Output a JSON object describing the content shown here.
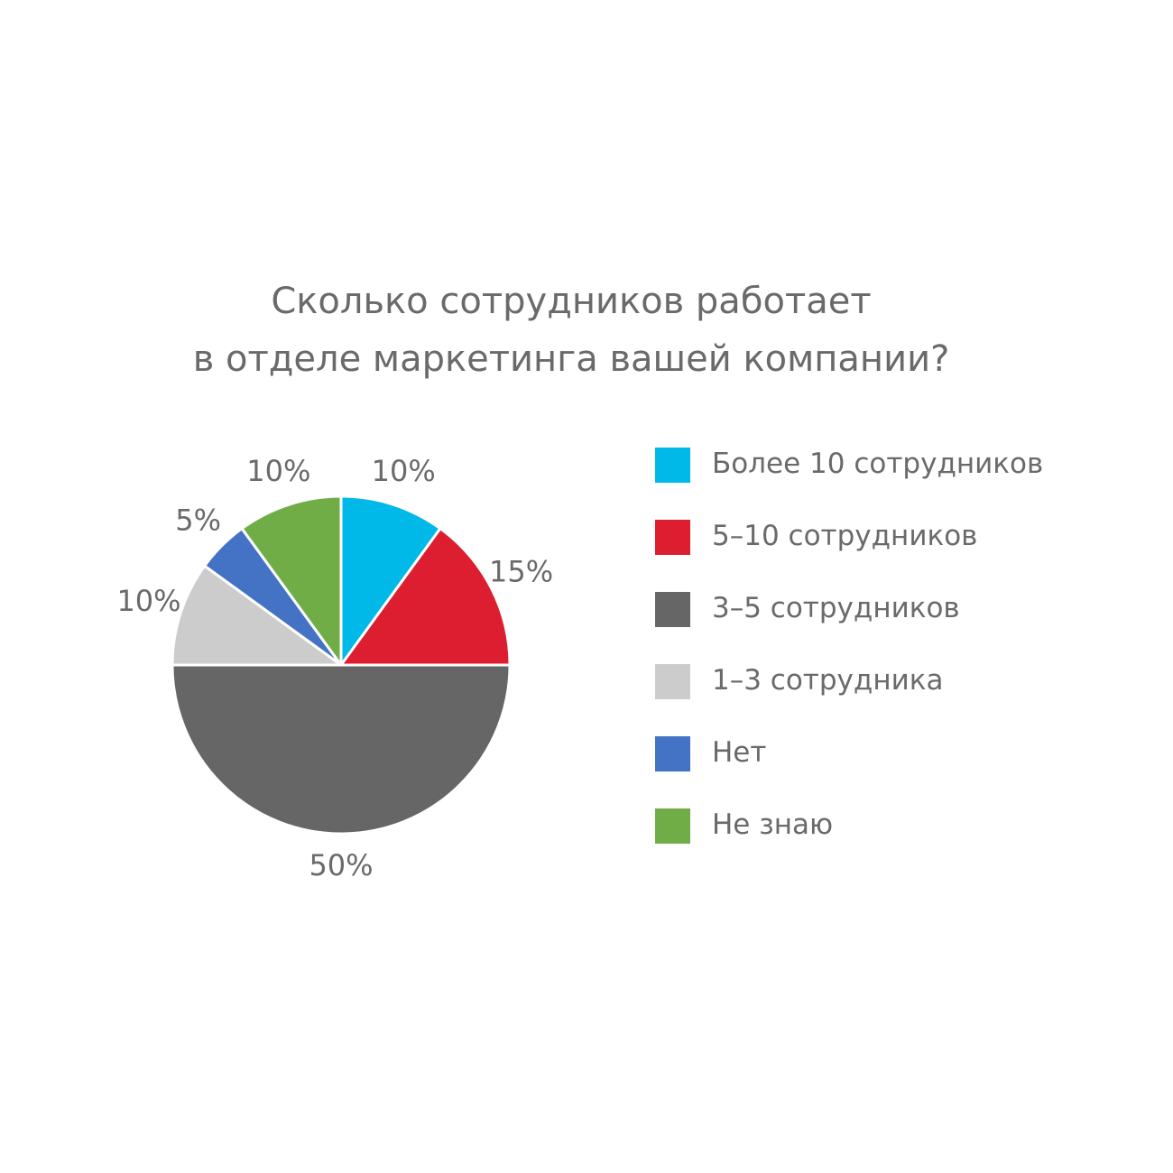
{
  "chart_data": {
    "type": "pie",
    "title": "Сколько сотрудников работает в отделе маркетинга вашей компании?",
    "title_lines": [
      "Сколько сотрудников работает",
      "в отделе маркетинга вашей компании?"
    ],
    "legend_position": "right",
    "slices": [
      {
        "label": "Более 10 сотрудников",
        "value": 10,
        "value_label": "10%",
        "color": "#00b9e8"
      },
      {
        "label": "5–10 сотрудников",
        "value": 15,
        "value_label": "15%",
        "color": "#dc1e30"
      },
      {
        "label": "3–5 сотрудников",
        "value": 50,
        "value_label": "50%",
        "color": "#666666"
      },
      {
        "label": "1–3 сотрудника",
        "value": 10,
        "value_label": "10%",
        "color": "#cccccc"
      },
      {
        "label": "Нет",
        "value": 5,
        "value_label": "5%",
        "color": "#4472c4"
      },
      {
        "label": "Не знаю",
        "value": 10,
        "value_label": "10%",
        "color": "#70ad47"
      }
    ]
  }
}
